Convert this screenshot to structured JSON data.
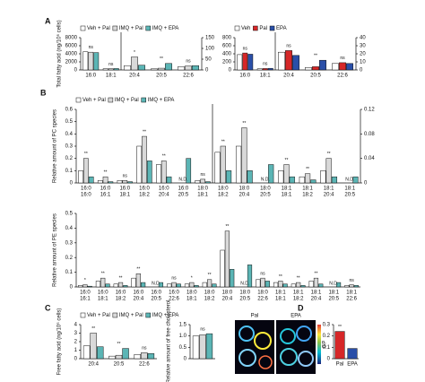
{
  "chart_data": [
    {
      "type": "bar",
      "panel": "A",
      "legend": true,
      "ylabel": "Total fatty acid (ng/10⁶ cells)",
      "categories": [
        "16:0",
        "18:1"
      ],
      "ylim": [
        0,
        8000
      ],
      "yticks": [
        0,
        2000,
        4000,
        6000,
        8000
      ],
      "series": [
        {
          "name": "Veh + Pal",
          "color": "#ffffff",
          "values": [
            4500,
            300
          ]
        },
        {
          "name": "IMQ + Pal",
          "color": "#d9d9d9",
          "values": [
            4400,
            320
          ]
        },
        {
          "name": "IMQ + EPA",
          "color": "#5bb5b5",
          "values": [
            4300,
            350
          ]
        }
      ],
      "annotations": [
        {
          "label": "ns",
          "category": 0
        },
        {
          "label": "ns",
          "category": 1
        }
      ]
    },
    {
      "type": "bar",
      "y_side": "right",
      "categories": [
        "20:4",
        "20:5",
        "22:6"
      ],
      "ylim": [
        0,
        150
      ],
      "yticks": [
        0,
        50,
        100,
        150
      ],
      "series": [
        {
          "color": "#ffffff",
          "values": [
            20,
            5,
            15
          ]
        },
        {
          "color": "#d9d9d9",
          "values": [
            60,
            8,
            18
          ]
        },
        {
          "color": "#5bb5b5",
          "values": [
            22,
            30,
            20
          ]
        }
      ],
      "annotations": [
        {
          "label": "*",
          "category": 0
        },
        {
          "label": "**",
          "category": 1
        },
        {
          "label": "ns",
          "category": 2
        }
      ]
    },
    {
      "type": "bar",
      "legend": true,
      "categories": [
        "16:0",
        "18:1"
      ],
      "ylim": [
        0,
        800
      ],
      "yticks": [
        0,
        200,
        400,
        600,
        800
      ],
      "series": [
        {
          "name": "Veh",
          "color": "#ffffff",
          "values": [
            380,
            30
          ]
        },
        {
          "name": "Pal",
          "color": "#d62728",
          "values": [
            420,
            35
          ]
        },
        {
          "name": "EPA",
          "color": "#2a4fa8",
          "values": [
            390,
            40
          ]
        }
      ],
      "annotations": [
        {
          "label": "ns",
          "category": 0
        },
        {
          "label": "ns",
          "category": 1
        }
      ]
    },
    {
      "type": "bar",
      "y_side": "right",
      "categories": [
        "20:4",
        "20:5",
        "22:6"
      ],
      "ylim": [
        0,
        40
      ],
      "yticks": [
        0,
        10,
        20,
        30,
        40
      ],
      "series": [
        {
          "color": "#ffffff",
          "values": [
            22,
            3,
            8
          ]
        },
        {
          "color": "#d62728",
          "values": [
            24,
            4,
            9
          ]
        },
        {
          "color": "#2a4fa8",
          "values": [
            18,
            12,
            8
          ]
        }
      ],
      "annotations": [
        {
          "label": "ns",
          "category": 0
        },
        {
          "label": "**",
          "category": 1
        },
        {
          "label": "ns",
          "category": 2
        }
      ]
    },
    {
      "type": "bar",
      "panel": "B",
      "legend": true,
      "ylabel": "Relative amount of PC species",
      "categories": [
        [
          "16:0",
          "16:0"
        ],
        [
          "16:0",
          "16:1"
        ],
        [
          "16:0",
          "18:1"
        ],
        [
          "16:0",
          "18:2"
        ],
        [
          "16:0",
          "20:4"
        ],
        [
          "16:0",
          "20:5"
        ],
        [
          "18:0",
          "18:1"
        ]
      ],
      "ylim": [
        0,
        0.6
      ],
      "yticks": [
        0,
        0.1,
        0.2,
        0.3,
        0.4,
        0.5,
        0.6
      ],
      "series": [
        {
          "name": "Veh + Pal",
          "color": "#ffffff",
          "values": [
            0.1,
            0.02,
            0.02,
            0.3,
            0.15,
            null,
            0.02
          ]
        },
        {
          "name": "IMQ + Pal",
          "color": "#d9d9d9",
          "values": [
            0.2,
            0.05,
            0.02,
            0.38,
            0.18,
            null,
            0.03
          ]
        },
        {
          "name": "IMQ + EPA",
          "color": "#5bb5b5",
          "values": [
            0.05,
            0.01,
            0.01,
            0.18,
            0.05,
            0.2,
            0.01
          ]
        }
      ],
      "annotations": [
        {
          "label": "**",
          "category": 0
        },
        {
          "label": "**",
          "category": 1
        },
        {
          "label": "ns",
          "category": 2
        },
        {
          "label": "**",
          "category": 3
        },
        {
          "label": "**",
          "category": 4
        },
        {
          "label": "N.D.",
          "category": 5
        },
        {
          "label": "ns",
          "category": 6
        }
      ]
    },
    {
      "type": "bar",
      "y_side": "right",
      "categories": [
        [
          "18:0",
          "18:2"
        ],
        [
          "18:0",
          "20:4"
        ],
        [
          "18:0",
          "20:5"
        ],
        [
          "18:1",
          "18:1"
        ],
        [
          "18:1",
          "18:2"
        ],
        [
          "18:1",
          "20:4"
        ],
        [
          "18:1",
          "20:5"
        ]
      ],
      "ylim": [
        0,
        0.12
      ],
      "yticks": [
        0,
        0.04,
        0.08,
        0.12
      ],
      "series": [
        {
          "color": "#ffffff",
          "values": [
            0.05,
            0.06,
            null,
            0.02,
            0.01,
            0.02,
            null
          ]
        },
        {
          "color": "#d9d9d9",
          "values": [
            0.06,
            0.09,
            null,
            0.03,
            0.015,
            0.04,
            null
          ]
        },
        {
          "color": "#5bb5b5",
          "values": [
            0.02,
            0.02,
            0.03,
            0.01,
            0.005,
            0.01,
            0.01
          ]
        }
      ],
      "annotations": [
        {
          "label": "**",
          "category": 0
        },
        {
          "label": "**",
          "category": 1
        },
        {
          "label": "N.D.",
          "category": 2
        },
        {
          "label": "**",
          "category": 3
        },
        {
          "label": "**",
          "category": 4
        },
        {
          "label": "**",
          "category": 5
        },
        {
          "label": "N.D.",
          "category": 6
        }
      ]
    },
    {
      "type": "bar",
      "ylabel": "Relative amount of PE species",
      "categories": [
        [
          "16:0",
          "16:1"
        ],
        [
          "16:0",
          "18:1"
        ],
        [
          "16:0",
          "18:2"
        ],
        [
          "16:0",
          "20:4"
        ],
        [
          "16:0",
          "20:5"
        ],
        [
          "16:0",
          "22:6"
        ],
        [
          "18:0",
          "18:1"
        ],
        [
          "18:0",
          "18:2"
        ],
        [
          "18:0",
          "20:4"
        ],
        [
          "18:0",
          "20:5"
        ],
        [
          "18:0",
          "22:6"
        ],
        [
          "18:1",
          "18:1"
        ],
        [
          "18:1",
          "18:2"
        ],
        [
          "18:1",
          "20:4"
        ],
        [
          "18:1",
          "20:5"
        ],
        [
          "18:1",
          "22:6"
        ]
      ],
      "ylim": [
        0,
        0.5
      ],
      "yticks": [
        0,
        0.1,
        0.2,
        0.3,
        0.4,
        0.5
      ],
      "series": [
        {
          "color": "#ffffff",
          "values": [
            0.01,
            0.04,
            0.02,
            0.06,
            null,
            0.02,
            0.02,
            0.03,
            0.25,
            null,
            0.05,
            0.03,
            0.02,
            0.04,
            null,
            0.01
          ]
        },
        {
          "color": "#d9d9d9",
          "values": [
            0.015,
            0.06,
            0.03,
            0.09,
            null,
            0.03,
            0.03,
            0.05,
            0.38,
            null,
            0.06,
            0.04,
            0.03,
            0.06,
            null,
            0.015
          ]
        },
        {
          "color": "#5bb5b5",
          "values": [
            0.005,
            0.02,
            0.01,
            0.03,
            0.03,
            0.02,
            0.01,
            0.02,
            0.12,
            0.15,
            0.04,
            0.02,
            0.01,
            0.02,
            0.03,
            0.01
          ]
        }
      ],
      "annotations": [
        {
          "label": "*",
          "category": 0
        },
        {
          "label": "**",
          "category": 1
        },
        {
          "label": "**",
          "category": 2
        },
        {
          "label": "**",
          "category": 3
        },
        {
          "label": "N.D.",
          "category": 4
        },
        {
          "label": "ns",
          "category": 5
        },
        {
          "label": "*",
          "category": 6
        },
        {
          "label": "**",
          "category": 7
        },
        {
          "label": "**",
          "category": 8
        },
        {
          "label": "N.D.",
          "category": 9
        },
        {
          "label": "ns",
          "category": 10
        },
        {
          "label": "**",
          "category": 11
        },
        {
          "label": "**",
          "category": 12
        },
        {
          "label": "**",
          "category": 13
        },
        {
          "label": "N.D.",
          "category": 14
        },
        {
          "label": "ns",
          "category": 15
        }
      ]
    },
    {
      "type": "bar",
      "panel": "C",
      "legend": true,
      "ylabel": "Free fatty acid (ng/10⁶ cells)",
      "categories": [
        "20:4",
        "20:5",
        "22:6"
      ],
      "ylim": [
        0,
        4
      ],
      "yticks": [
        0,
        1,
        2,
        3,
        4
      ],
      "series": [
        {
          "name": "Veh + Pal",
          "color": "#ffffff",
          "values": [
            1.5,
            0.3,
            0.5
          ]
        },
        {
          "name": "IMQ + Pal",
          "color": "#d9d9d9",
          "values": [
            3.0,
            0.4,
            0.7
          ]
        },
        {
          "name": "IMQ + EPA",
          "color": "#5bb5b5",
          "values": [
            1.4,
            1.2,
            0.6
          ]
        }
      ],
      "annotations": [
        {
          "label": "**",
          "category": 0
        },
        {
          "label": "**",
          "category": 1
        },
        {
          "label": "ns",
          "category": 2
        }
      ]
    },
    {
      "type": "bar",
      "ylabel": "Relative amount of free cholesterol",
      "categories": [
        null
      ],
      "ylim": [
        0,
        1.5
      ],
      "yticks": [
        0,
        0.5,
        {
          "value": 1,
          "label": "1.0"
        },
        1.5
      ],
      "series": [
        {
          "color": "#ffffff",
          "values": [
            1.0
          ]
        },
        {
          "color": "#d9d9d9",
          "values": [
            1.05
          ]
        },
        {
          "color": "#5bb5b5",
          "values": [
            1.1
          ]
        }
      ],
      "annotations": [
        {
          "label": "ns",
          "category": 0
        }
      ]
    },
    {
      "type": "bar",
      "panel": "D",
      "ylabel": "GP",
      "categories": [
        "Pal",
        "EPA"
      ],
      "ylim": [
        0,
        0.3
      ],
      "yticks": [
        0,
        0.1,
        0.2,
        0.3
      ],
      "series": [
        {
          "colors": [
            "#d62728",
            "#2a4fa8"
          ],
          "values": [
            0.24,
            0.09
          ]
        }
      ],
      "annotations": [
        {
          "label": "**",
          "category": 0
        }
      ]
    }
  ],
  "micrographs": {
    "labels": [
      "Pal",
      "EPA"
    ],
    "colorbar_label": "GP"
  }
}
